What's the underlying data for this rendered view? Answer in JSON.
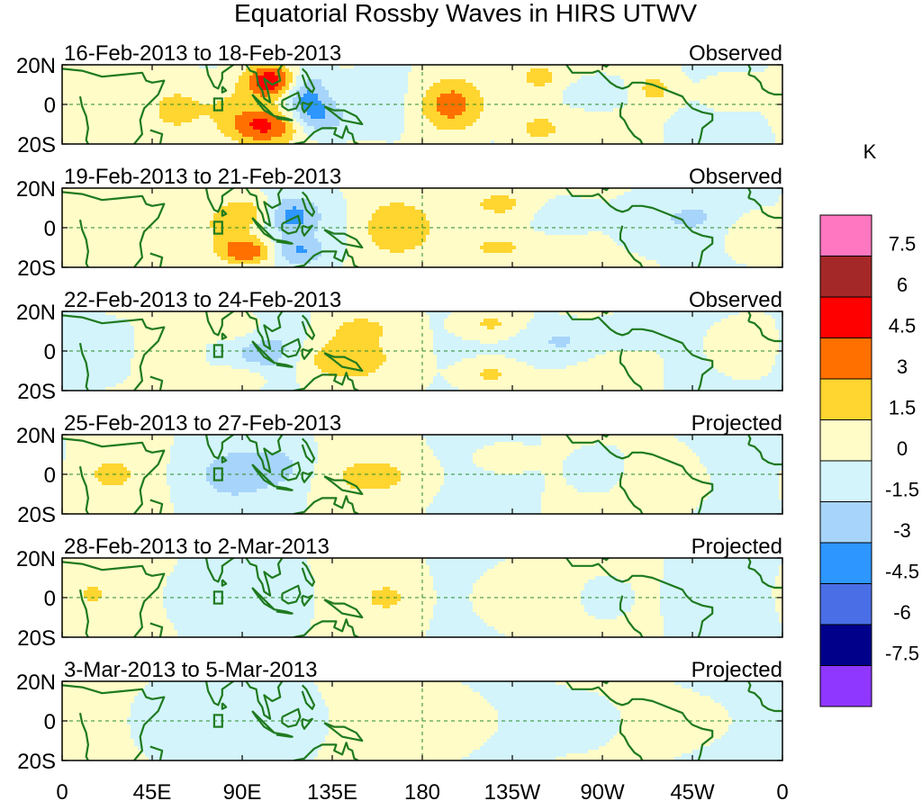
{
  "chart_data": {
    "type": "heatmap",
    "title": "Equatorial Rossby Waves in HIRS UTWV",
    "unit": "K",
    "x_tick_labels": [
      "0",
      "45E",
      "90E",
      "135E",
      "180",
      "135W",
      "90W",
      "45W",
      "0"
    ],
    "x_ticks_deg": [
      0,
      45,
      90,
      135,
      180,
      225,
      270,
      315,
      360
    ],
    "y_tick_labels": [
      "20N",
      "0",
      "20S"
    ],
    "y_ticks_deg": [
      20,
      0,
      -20
    ],
    "ylim": [
      -20,
      20
    ],
    "xlim": [
      0,
      360
    ],
    "contour_levels": [
      -7.5,
      -6,
      -4.5,
      -3,
      -1.5,
      0,
      1.5,
      3,
      4.5,
      6,
      7.5
    ],
    "colorbar_labels": [
      "7.5",
      "6",
      "4.5",
      "3",
      "1.5",
      "0",
      "-1.5",
      "-3",
      "-4.5",
      "-6",
      "-7.5"
    ],
    "colorbar_colors": [
      "#ff77c0",
      "#a52828",
      "#ff0000",
      "#ff7000",
      "#ffd530",
      "#fffcc8",
      "#d3f4fb",
      "#a7d4fa",
      "#2d96ff",
      "#4a6ee6",
      "#00008b",
      "#8f36ff"
    ],
    "panels": [
      {
        "period": "16-Feb-2013 to 18-Feb-2013",
        "status": "Observed",
        "blobs": [
          {
            "lon": 104,
            "lat": 12,
            "value": 6.0,
            "slon": 9,
            "slat": 6
          },
          {
            "lon": 101,
            "lat": -11,
            "value": 5.0,
            "slon": 13,
            "slat": 7
          },
          {
            "lon": 82,
            "lat": 0,
            "value": 1.5,
            "slon": 12,
            "slat": 9
          },
          {
            "lon": 122,
            "lat": 4,
            "value": -3.5,
            "slon": 8,
            "slat": 9
          },
          {
            "lon": 130,
            "lat": -7,
            "value": -2.5,
            "slon": 9,
            "slat": 6
          },
          {
            "lon": 195,
            "lat": 0,
            "value": 4.0,
            "slon": 12,
            "slat": 10
          },
          {
            "lon": 160,
            "lat": 2,
            "value": -1.0,
            "slon": 14,
            "slat": 12
          },
          {
            "lon": 238,
            "lat": 14,
            "value": 2.0,
            "slon": 10,
            "slat": 6
          },
          {
            "lon": 238,
            "lat": -12,
            "value": 2.0,
            "slon": 10,
            "slat": 6
          },
          {
            "lon": 268,
            "lat": 6,
            "value": -1.8,
            "slon": 11,
            "slat": 5
          },
          {
            "lon": 296,
            "lat": 8,
            "value": 2.0,
            "slon": 8,
            "slat": 6
          },
          {
            "lon": 57,
            "lat": -3,
            "value": 2.0,
            "slon": 9,
            "slat": 8
          },
          {
            "lon": 20,
            "lat": 4,
            "value": 1.0,
            "slon": 14,
            "slat": 12
          },
          {
            "lon": 335,
            "lat": 6,
            "value": 1.2,
            "slon": 10,
            "slat": 6
          }
        ]
      },
      {
        "period": "19-Feb-2013 to 21-Feb-2013",
        "status": "Observed",
        "blobs": [
          {
            "lon": 92,
            "lat": 8,
            "value": 2.5,
            "slon": 10,
            "slat": 6
          },
          {
            "lon": 92,
            "lat": -12,
            "value": 4.5,
            "slon": 10,
            "slat": 5
          },
          {
            "lon": 80,
            "lat": 0,
            "value": 1.5,
            "slon": 11,
            "slat": 8
          },
          {
            "lon": 115,
            "lat": 6,
            "value": -3.5,
            "slon": 9,
            "slat": 7
          },
          {
            "lon": 118,
            "lat": -12,
            "value": -3.0,
            "slon": 9,
            "slat": 5
          },
          {
            "lon": 168,
            "lat": 0,
            "value": 2.5,
            "slon": 16,
            "slat": 11
          },
          {
            "lon": 138,
            "lat": 0,
            "value": -1.0,
            "slon": 12,
            "slat": 12
          },
          {
            "lon": 218,
            "lat": 12,
            "value": 2.2,
            "slon": 12,
            "slat": 6
          },
          {
            "lon": 218,
            "lat": -10,
            "value": 2.2,
            "slon": 12,
            "slat": 5
          },
          {
            "lon": 255,
            "lat": 6,
            "value": -1.5,
            "slon": 11,
            "slat": 5
          },
          {
            "lon": 290,
            "lat": 3,
            "value": -1.5,
            "slon": 10,
            "slat": 8
          },
          {
            "lon": 315,
            "lat": 5,
            "value": -1.6,
            "slon": 10,
            "slat": 6
          },
          {
            "lon": 48,
            "lat": 2,
            "value": 1.0,
            "slon": 12,
            "slat": 10
          },
          {
            "lon": 345,
            "lat": -5,
            "value": 1.0,
            "slon": 10,
            "slat": 8
          }
        ]
      },
      {
        "period": "22-Feb-2013 to 24-Feb-2013",
        "status": "Observed",
        "blobs": [
          {
            "lon": 90,
            "lat": 11,
            "value": 2.0,
            "slon": 12,
            "slat": 6
          },
          {
            "lon": 90,
            "lat": -13,
            "value": 2.0,
            "slon": 12,
            "slat": 5
          },
          {
            "lon": 102,
            "lat": 0,
            "value": -2.5,
            "slon": 14,
            "slat": 11
          },
          {
            "lon": 140,
            "lat": -4,
            "value": 2.5,
            "slon": 18,
            "slat": 8
          },
          {
            "lon": 150,
            "lat": 12,
            "value": 1.5,
            "slon": 12,
            "slat": 5
          },
          {
            "lon": 214,
            "lat": 14,
            "value": 2.0,
            "slon": 10,
            "slat": 5
          },
          {
            "lon": 214,
            "lat": -12,
            "value": 2.0,
            "slon": 10,
            "slat": 5
          },
          {
            "lon": 250,
            "lat": 5,
            "value": -1.8,
            "slon": 12,
            "slat": 6
          },
          {
            "lon": 283,
            "lat": 10,
            "value": -1.5,
            "slon": 10,
            "slat": 5
          },
          {
            "lon": 54,
            "lat": -2,
            "value": 1.2,
            "slon": 10,
            "slat": 8
          },
          {
            "lon": 20,
            "lat": 0,
            "value": -0.8,
            "slon": 16,
            "slat": 12
          },
          {
            "lon": 340,
            "lat": 2,
            "value": 1.0,
            "slon": 12,
            "slat": 10
          }
        ]
      },
      {
        "period": "25-Feb-2013 to 27-Feb-2013",
        "status": "Projected",
        "blobs": [
          {
            "lon": 25,
            "lat": 0,
            "value": 1.8,
            "slon": 10,
            "slat": 7
          },
          {
            "lon": 85,
            "lat": 0,
            "value": -2.0,
            "slon": 14,
            "slat": 10
          },
          {
            "lon": 110,
            "lat": 4,
            "value": -1.6,
            "slon": 10,
            "slat": 8
          },
          {
            "lon": 155,
            "lat": -1,
            "value": 2.0,
            "slon": 16,
            "slat": 7
          },
          {
            "lon": 220,
            "lat": 8,
            "value": 1.6,
            "slon": 8,
            "slat": 4
          },
          {
            "lon": 270,
            "lat": 2,
            "value": -1.2,
            "slon": 10,
            "slat": 8
          },
          {
            "lon": 300,
            "lat": -3,
            "value": 1.0,
            "slon": 16,
            "slat": 10
          },
          {
            "lon": 340,
            "lat": 8,
            "value": -0.6,
            "slon": 10,
            "slat": 6
          }
        ]
      },
      {
        "period": "28-Feb-2013 to 2-Mar-2013",
        "status": "Projected",
        "blobs": [
          {
            "lon": 15,
            "lat": 2,
            "value": 1.5,
            "slon": 8,
            "slat": 6
          },
          {
            "lon": 75,
            "lat": 0,
            "value": -1.2,
            "slon": 12,
            "slat": 8
          },
          {
            "lon": 110,
            "lat": 0,
            "value": -1.4,
            "slon": 12,
            "slat": 9
          },
          {
            "lon": 163,
            "lat": 0,
            "value": 1.6,
            "slon": 6,
            "slat": 4
          },
          {
            "lon": 145,
            "lat": 0,
            "value": 0.8,
            "slon": 18,
            "slat": 10
          },
          {
            "lon": 230,
            "lat": 0,
            "value": 0.8,
            "slon": 18,
            "slat": 12
          },
          {
            "lon": 270,
            "lat": 0,
            "value": -0.8,
            "slon": 10,
            "slat": 8
          }
        ]
      },
      {
        "period": "3-Mar-2013 to 5-Mar-2013",
        "status": "Projected",
        "blobs": [
          {
            "lon": 55,
            "lat": 0,
            "value": -1.0,
            "slon": 14,
            "slat": 12
          },
          {
            "lon": 110,
            "lat": 0,
            "value": -1.0,
            "slon": 14,
            "slat": 10
          },
          {
            "lon": 185,
            "lat": 0,
            "value": 0.9,
            "slon": 22,
            "slat": 12
          },
          {
            "lon": 260,
            "lat": 0,
            "value": -0.8,
            "slon": 14,
            "slat": 10
          },
          {
            "lon": 315,
            "lat": 0,
            "value": 0.6,
            "slon": 16,
            "slat": 10
          }
        ]
      }
    ]
  }
}
